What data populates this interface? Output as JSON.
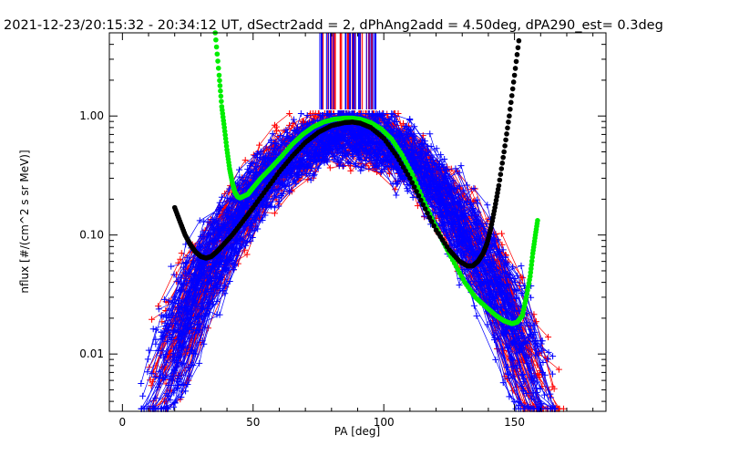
{
  "chart_data": {
    "type": "scatter",
    "title": "2021-12-23/20:15:32 - 20:34:12 UT, dSectr2add = 2, dPhAng2add = 4.50deg, dPA290_est=    0.3deg",
    "xlabel": "PA [deg]",
    "ylabel": "nflux [#/(cm^2 s sr MeV)]",
    "xlim": [
      -5,
      185
    ],
    "ylim": [
      0.0033,
      5.0
    ],
    "y_scale": "log",
    "x_ticks": [
      0,
      50,
      100,
      150
    ],
    "x_tick_labels": [
      "0",
      "50",
      "100",
      "150"
    ],
    "y_ticks": [
      0.01,
      0.1,
      1.0
    ],
    "y_tick_labels": [
      "0.01",
      "0.10",
      "1.00"
    ],
    "grid": false,
    "series": [
      {
        "color": "#ff0000",
        "style": "line-with-plus-markers",
        "description_values": "many red pitch-angle distributions",
        "peak": {
          "x": [
            75,
            100
          ],
          "y": 0.9
        },
        "left_tail": {
          "x": [
            10,
            45
          ],
          "y": [
            0.0035,
            0.45
          ]
        },
        "right_tail": {
          "x": [
            125,
            170
          ],
          "y": [
            0.004,
            0.17
          ]
        }
      },
      {
        "color": "#0000ff",
        "style": "line-with-plus-markers",
        "description_values": "many blue pitch-angle distributions",
        "peak": {
          "x": [
            75,
            100
          ],
          "y": 0.9
        },
        "left_tail": {
          "x": [
            7,
            45
          ],
          "y": [
            0.004,
            0.22
          ]
        },
        "right_tail": {
          "x": [
            130,
            168
          ],
          "y": [
            0.004,
            0.05
          ]
        }
      },
      {
        "color": "#00ee00",
        "style": "thick-dots",
        "x": [
          35.5,
          37,
          38,
          39,
          40,
          41,
          42,
          43,
          44,
          45,
          46,
          48,
          50,
          53,
          57,
          61,
          65,
          69,
          73,
          77,
          81,
          85,
          88,
          91,
          95,
          99,
          103,
          107,
          111,
          115,
          119,
          123,
          127,
          131,
          135,
          139,
          143,
          146,
          149,
          151,
          153,
          154.5,
          156,
          157,
          158,
          159
        ],
        "y": [
          5.0,
          2.2,
          1.2,
          0.8,
          0.52,
          0.36,
          0.28,
          0.23,
          0.21,
          0.205,
          0.21,
          0.22,
          0.25,
          0.3,
          0.37,
          0.46,
          0.58,
          0.7,
          0.81,
          0.89,
          0.94,
          0.96,
          0.96,
          0.94,
          0.88,
          0.78,
          0.64,
          0.47,
          0.32,
          0.2,
          0.13,
          0.085,
          0.058,
          0.04,
          0.03,
          0.025,
          0.021,
          0.019,
          0.018,
          0.0185,
          0.021,
          0.03,
          0.045,
          0.07,
          0.1,
          0.14
        ]
      },
      {
        "color": "#000000",
        "style": "thick-dots",
        "x": [
          20,
          22,
          24,
          26,
          28,
          30,
          32,
          34,
          36,
          38,
          42,
          46,
          50,
          55,
          60,
          65,
          70,
          75,
          80,
          85,
          88,
          91,
          95,
          100,
          105,
          110,
          115,
          120,
          125,
          129,
          132,
          134,
          136,
          138,
          139.5,
          141,
          142.5,
          144,
          146,
          148,
          150,
          152
        ],
        "y": [
          0.17,
          0.13,
          0.1,
          0.083,
          0.072,
          0.066,
          0.064,
          0.066,
          0.072,
          0.08,
          0.1,
          0.13,
          0.17,
          0.24,
          0.34,
          0.46,
          0.6,
          0.73,
          0.83,
          0.88,
          0.89,
          0.87,
          0.8,
          0.65,
          0.46,
          0.3,
          0.18,
          0.11,
          0.075,
          0.06,
          0.055,
          0.055,
          0.06,
          0.07,
          0.085,
          0.115,
          0.17,
          0.26,
          0.5,
          1.0,
          2.2,
          4.9
        ]
      }
    ]
  }
}
